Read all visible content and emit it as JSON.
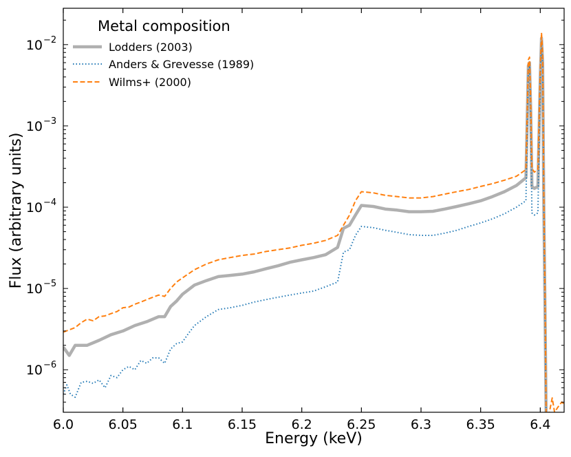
{
  "chart_data": {
    "type": "line",
    "xlabel": "Energy (keV)",
    "ylabel": "Flux (arbitrary units)",
    "xlim": [
      6.0,
      6.42
    ],
    "ylim": [
      3e-07,
      0.028
    ],
    "yscale": "log",
    "grid": false,
    "legend_title": "Metal composition",
    "legend_position": "top-left",
    "x_ticks": [
      "6.0",
      "6.05",
      "6.1",
      "6.15",
      "6.2",
      "6.25",
      "6.3",
      "6.35",
      "6.4"
    ],
    "x_tick_values": [
      6.0,
      6.05,
      6.1,
      6.15,
      6.2,
      6.25,
      6.3,
      6.35,
      6.4
    ],
    "y_ticks": [
      {
        "mantissa": "10",
        "exp": "−6",
        "value": 1e-06
      },
      {
        "mantissa": "10",
        "exp": "−5",
        "value": 1e-05
      },
      {
        "mantissa": "10",
        "exp": "−4",
        "value": 0.0001
      },
      {
        "mantissa": "10",
        "exp": "−3",
        "value": 0.001
      },
      {
        "mantissa": "10",
        "exp": "−2",
        "value": 0.01
      }
    ],
    "series": [
      {
        "name": "Lodders (2003)",
        "color": "#b0b0b0",
        "style": "solid",
        "x": [
          6.0,
          6.005,
          6.01,
          6.015,
          6.02,
          6.03,
          6.04,
          6.05,
          6.06,
          6.07,
          6.08,
          6.085,
          6.09,
          6.095,
          6.1,
          6.11,
          6.12,
          6.13,
          6.14,
          6.15,
          6.16,
          6.17,
          6.18,
          6.19,
          6.2,
          6.21,
          6.22,
          6.23,
          6.235,
          6.24,
          6.245,
          6.25,
          6.26,
          6.27,
          6.28,
          6.29,
          6.3,
          6.31,
          6.32,
          6.33,
          6.34,
          6.35,
          6.36,
          6.37,
          6.38,
          6.388,
          6.39,
          6.391,
          6.392,
          6.393,
          6.395,
          6.398,
          6.4,
          6.401,
          6.402,
          6.403,
          6.404,
          6.405
        ],
        "y": [
          1.9e-06,
          1.5e-06,
          2e-06,
          2e-06,
          2e-06,
          2.3e-06,
          2.7e-06,
          3e-06,
          3.5e-06,
          3.9e-06,
          4.5e-06,
          4.5e-06,
          6e-06,
          7e-06,
          8.5e-06,
          1.1e-05,
          1.25e-05,
          1.4e-05,
          1.45e-05,
          1.5e-05,
          1.6e-05,
          1.75e-05,
          1.9e-05,
          2.1e-05,
          2.25e-05,
          2.4e-05,
          2.6e-05,
          3.2e-05,
          5.5e-05,
          6e-05,
          8e-05,
          0.000105,
          0.000102,
          9.5e-05,
          9.2e-05,
          8.8e-05,
          8.8e-05,
          8.9e-05,
          9.5e-05,
          0.000102,
          0.00011,
          0.00012,
          0.000135,
          0.000155,
          0.000185,
          0.00023,
          0.0055,
          0.006,
          0.0015,
          0.00018,
          0.00017,
          0.00018,
          0.004,
          0.012,
          0.006,
          0.0001,
          5e-06,
          2e-07
        ]
      },
      {
        "name": "Anders & Grevesse (1989)",
        "color": "#1f77b4",
        "style": "dotted",
        "x": [
          6.0,
          6.003,
          6.006,
          6.01,
          6.015,
          6.02,
          6.025,
          6.03,
          6.035,
          6.04,
          6.045,
          6.05,
          6.055,
          6.06,
          6.065,
          6.07,
          6.075,
          6.08,
          6.085,
          6.09,
          6.095,
          6.1,
          6.105,
          6.11,
          6.12,
          6.13,
          6.14,
          6.15,
          6.16,
          6.17,
          6.18,
          6.19,
          6.2,
          6.21,
          6.22,
          6.23,
          6.235,
          6.24,
          6.245,
          6.25,
          6.26,
          6.27,
          6.28,
          6.29,
          6.3,
          6.31,
          6.32,
          6.33,
          6.34,
          6.35,
          6.36,
          6.37,
          6.38,
          6.388,
          6.39,
          6.391,
          6.392,
          6.393,
          6.395,
          6.398,
          6.4,
          6.401,
          6.402,
          6.403,
          6.404,
          6.405
        ],
        "y": [
          5e-07,
          6.5e-07,
          5e-07,
          4.6e-07,
          7e-07,
          7.2e-07,
          6.8e-07,
          7.5e-07,
          6e-07,
          8.5e-07,
          8e-07,
          1e-06,
          1.1e-06,
          1e-06,
          1.3e-06,
          1.2e-06,
          1.4e-06,
          1.4e-06,
          1.2e-06,
          1.8e-06,
          2.1e-06,
          2.2e-06,
          2.8e-06,
          3.5e-06,
          4.5e-06,
          5.5e-06,
          5.8e-06,
          6.2e-06,
          6.8e-06,
          7.3e-06,
          7.8e-06,
          8.3e-06,
          8.8e-06,
          9.3e-06,
          1.05e-05,
          1.2e-05,
          2.8e-05,
          3e-05,
          4.5e-05,
          5.8e-05,
          5.6e-05,
          5.2e-05,
          4.9e-05,
          4.6e-05,
          4.5e-05,
          4.5e-05,
          4.8e-05,
          5.2e-05,
          5.8e-05,
          6.4e-05,
          7.2e-05,
          8.3e-05,
          0.0001,
          0.00012,
          0.005,
          0.0055,
          0.0012,
          8.5e-05,
          8e-05,
          8.5e-05,
          0.0035,
          0.011,
          0.005,
          9e-05,
          4e-06,
          2e-07
        ]
      },
      {
        "name": "Wilms+ (2000)",
        "color": "#ff7f0e",
        "style": "dashed",
        "x": [
          6.0,
          6.005,
          6.01,
          6.015,
          6.02,
          6.025,
          6.03,
          6.035,
          6.04,
          6.045,
          6.05,
          6.055,
          6.06,
          6.065,
          6.07,
          6.075,
          6.08,
          6.085,
          6.09,
          6.095,
          6.1,
          6.11,
          6.12,
          6.13,
          6.14,
          6.15,
          6.16,
          6.17,
          6.18,
          6.19,
          6.2,
          6.21,
          6.22,
          6.23,
          6.235,
          6.24,
          6.245,
          6.25,
          6.26,
          6.27,
          6.28,
          6.29,
          6.3,
          6.31,
          6.32,
          6.33,
          6.34,
          6.35,
          6.36,
          6.37,
          6.38,
          6.388,
          6.39,
          6.391,
          6.392,
          6.393,
          6.395,
          6.398,
          6.4,
          6.401,
          6.402,
          6.403,
          6.404,
          6.405,
          6.408,
          6.41,
          6.412,
          6.415,
          6.418,
          6.42
        ],
        "y": [
          2.9e-06,
          3.1e-06,
          3.3e-06,
          3.8e-06,
          4.2e-06,
          4e-06,
          4.5e-06,
          4.6e-06,
          4.9e-06,
          5.2e-06,
          5.8e-06,
          5.9e-06,
          6.4e-06,
          6.8e-06,
          7.3e-06,
          7.8e-06,
          8.3e-06,
          8e-06,
          1e-05,
          1.2e-05,
          1.35e-05,
          1.7e-05,
          2e-05,
          2.25e-05,
          2.4e-05,
          2.55e-05,
          2.65e-05,
          2.85e-05,
          3e-05,
          3.15e-05,
          3.4e-05,
          3.6e-05,
          3.9e-05,
          4.5e-05,
          6e-05,
          8e-05,
          0.00012,
          0.000155,
          0.00015,
          0.00014,
          0.000135,
          0.00013,
          0.00013,
          0.000135,
          0.000145,
          0.000155,
          0.000165,
          0.00018,
          0.000195,
          0.000215,
          0.00024,
          0.00029,
          0.0065,
          0.007,
          0.002,
          0.0003,
          0.00027,
          0.00029,
          0.005,
          0.014,
          0.008,
          0.00015,
          8e-06,
          2.2e-07,
          3.2e-07,
          4.5e-07,
          3e-07,
          3.5e-07,
          4e-07,
          3.8e-07
        ]
      }
    ]
  }
}
